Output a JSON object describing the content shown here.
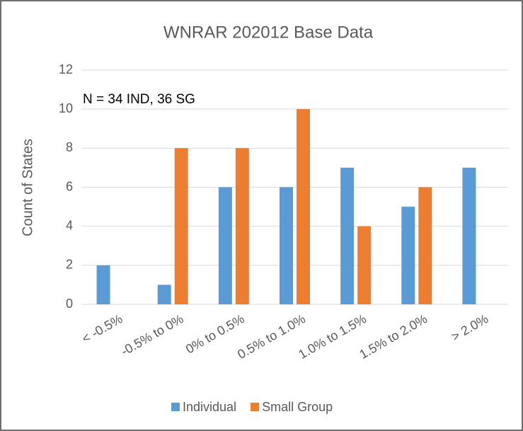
{
  "chart_data": {
    "type": "bar",
    "title": "WNRAR 202012 Base Data",
    "annotation": "N = 34 IND, 36 SG",
    "y_label": "Count of States",
    "categories": [
      "< -0.5%",
      "-0.5% to 0%",
      "0% to 0.5%",
      "0.5% to 1.0%",
      "1.0% to 1.5%",
      "1.5% to 2.0%",
      "> 2.0%"
    ],
    "series": [
      {
        "name": "Individual",
        "color": "#5b9bd5",
        "values": [
          2,
          1,
          6,
          6,
          7,
          5,
          7
        ]
      },
      {
        "name": "Small Group",
        "color": "#ed7d31",
        "values": [
          0,
          8,
          8,
          10,
          4,
          6,
          0
        ]
      }
    ],
    "ylim": [
      0,
      12
    ],
    "yticks": [
      0,
      2,
      4,
      6,
      8,
      10,
      12
    ],
    "grid": true,
    "legend": "bottom"
  }
}
